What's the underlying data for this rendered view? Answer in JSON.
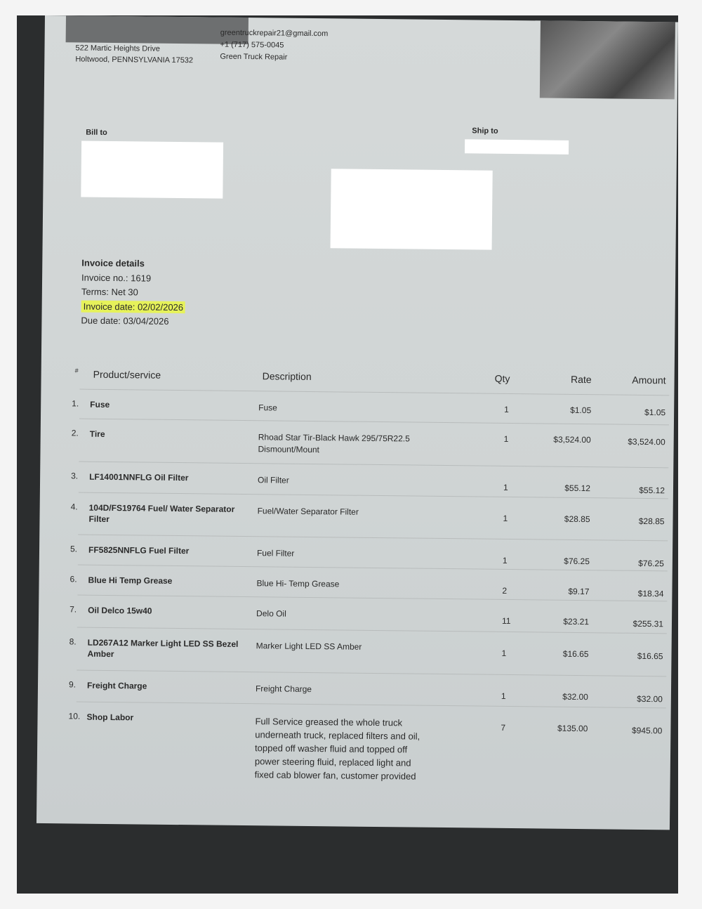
{
  "company": {
    "address_line1": "522 Martic Heights Drive",
    "address_line2": "Holtwood, PENNSYLVANIA 17532",
    "email": "greentruckrepair21@gmail.com",
    "phone": "+1 (717) 575-0045",
    "name": "Green Truck Repair"
  },
  "bill_to_label": "Bill to",
  "ship_to_label": "Ship to",
  "invoice_details": {
    "title": "Invoice details",
    "invoice_no": "Invoice no.: 1619",
    "terms": "Terms: Net 30",
    "invoice_date": "Invoice date: 02/02/2026",
    "due_date": "Due date: 03/04/2026"
  },
  "highlight_color": "#e6f25a",
  "table": {
    "headers": [
      "#",
      "Product/service",
      "Description",
      "Qty",
      "Rate",
      "Amount"
    ],
    "rows": [
      {
        "n": "1.",
        "product": "Fuse",
        "description": "Fuse",
        "qty": "1",
        "rate": "$1.05",
        "amount": "$1.05"
      },
      {
        "n": "2.",
        "product": "Tire",
        "description": "Rhoad Star Tir-Black Hawk 295/75R22.5 Dismount/Mount",
        "qty": "1",
        "rate": "$3,524.00",
        "amount": "$3,524.00"
      },
      {
        "n": "3.",
        "product": "LF14001NNFLG Oil Filter",
        "description": "Oil Filter",
        "qty": "1",
        "rate": "$55.12",
        "amount": "$55.12"
      },
      {
        "n": "4.",
        "product": "104D/FS19764 Fuel/ Water Separator Filter",
        "description": "Fuel/Water Separator Filter",
        "qty": "1",
        "rate": "$28.85",
        "amount": "$28.85"
      },
      {
        "n": "5.",
        "product": "FF5825NNFLG Fuel Filter",
        "description": "Fuel Filter",
        "qty": "1",
        "rate": "$76.25",
        "amount": "$76.25"
      },
      {
        "n": "6.",
        "product": "Blue Hi Temp Grease",
        "description": "Blue Hi- Temp Grease",
        "qty": "2",
        "rate": "$9.17",
        "amount": "$18.34"
      },
      {
        "n": "7.",
        "product": "Oil Delco 15w40",
        "description": "Delo Oil",
        "qty": "11",
        "rate": "$23.21",
        "amount": "$255.31"
      },
      {
        "n": "8.",
        "product": "LD267A12 Marker Light LED SS Bezel Amber",
        "description": "Marker Light LED SS Amber",
        "qty": "1",
        "rate": "$16.65",
        "amount": "$16.65"
      },
      {
        "n": "9.",
        "product": "Freight Charge",
        "description": "Freight Charge",
        "qty": "1",
        "rate": "$32.00",
        "amount": "$32.00"
      },
      {
        "n": "10.",
        "product": "Shop Labor",
        "description": "Full Service greased the whole truck underneath truck, replaced filters and oil, topped off washer fluid and topped off power steering fluid, replaced light and fixed cab blower fan, customer provided",
        "qty": "7",
        "rate": "$135.00",
        "amount": "$945.00"
      }
    ]
  }
}
